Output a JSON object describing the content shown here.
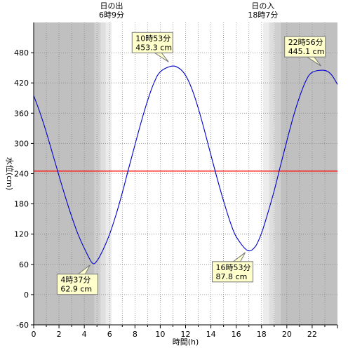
{
  "chart_data": {
    "type": "line",
    "title": "",
    "xlabel": "時間(h)",
    "ylabel": "水位(cm)",
    "xlim": [
      0,
      24
    ],
    "ylim": [
      -60,
      540
    ],
    "x_ticks": [
      0,
      2,
      4,
      6,
      8,
      10,
      12,
      14,
      16,
      18,
      20,
      22
    ],
    "x_tick_labels": [
      "0",
      "2",
      "4",
      "6",
      "8",
      "10",
      "12",
      "14",
      "16",
      "18",
      "20",
      "22"
    ],
    "y_ticks": [
      -60,
      0,
      60,
      120,
      180,
      240,
      300,
      360,
      420,
      480
    ],
    "y_tick_labels": [
      "-60",
      "0",
      "60",
      "120",
      "180",
      "240",
      "300",
      "360",
      "420",
      "480"
    ],
    "grid": true,
    "reference_line": {
      "y": 245,
      "color": "#ff0000"
    },
    "series": [
      {
        "color": "#0000cc",
        "x": [
          0,
          0.5,
          1,
          1.5,
          2,
          2.5,
          3,
          3.5,
          4,
          4.62,
          5,
          5.5,
          6,
          6.5,
          7,
          7.5,
          8,
          8.5,
          9,
          9.5,
          10,
          10.88,
          11.5,
          12,
          12.5,
          13,
          13.5,
          14,
          14.5,
          15,
          15.5,
          16,
          16.88,
          17.5,
          18,
          18.5,
          19,
          19.5,
          20,
          20.5,
          21,
          21.5,
          22,
          22.93,
          23.5,
          24
        ],
        "y": [
          395,
          361,
          322,
          279,
          236,
          194,
          155,
          120,
          92,
          62.9,
          67,
          90,
          120,
          158,
          202,
          250,
          297,
          343,
          385,
          420,
          442,
          453.3,
          449,
          435,
          408,
          370,
          325,
          277,
          230,
          186,
          146,
          115,
          87.8,
          95,
          122,
          162,
          206,
          256,
          305,
          352,
          392,
          424,
          441,
          445.1,
          437,
          417
        ]
      }
    ],
    "sun_bands": [
      {
        "from": 0,
        "to": 4.8,
        "color": "#c0c0c0"
      },
      {
        "from": 4.8,
        "to": 5.3,
        "color": "#cfcfcf"
      },
      {
        "from": 5.3,
        "to": 5.7,
        "color": "#dedede"
      },
      {
        "from": 5.7,
        "to": 6.15,
        "color": "#ececec"
      },
      {
        "from": 18.12,
        "to": 18.6,
        "color": "#ececec"
      },
      {
        "from": 18.6,
        "to": 19.05,
        "color": "#dedede"
      },
      {
        "from": 19.05,
        "to": 19.5,
        "color": "#cfcfcf"
      },
      {
        "from": 19.5,
        "to": 24,
        "color": "#c0c0c0"
      }
    ],
    "sunrise": {
      "label": "日の出",
      "time": "6時9分",
      "x": 6.15
    },
    "sunset": {
      "label": "日の入",
      "time": "18時7分",
      "x": 18.12
    },
    "annotations": [
      {
        "name": "low-1",
        "time": "4時37分",
        "value": "62.9 cm",
        "x": 4.62,
        "y": 62.9,
        "placement": "below-left"
      },
      {
        "name": "high-1",
        "time": "10時53分",
        "value": "453.3 cm",
        "x": 10.88,
        "y": 453.3,
        "placement": "above-left"
      },
      {
        "name": "low-2",
        "time": "16時53分",
        "value": "87.8 cm",
        "x": 16.88,
        "y": 87.8,
        "placement": "below-left"
      },
      {
        "name": "high-2",
        "time": "22時56分",
        "value": "445.1 cm",
        "x": 22.93,
        "y": 445.1,
        "placement": "above-left"
      }
    ],
    "colors": {
      "callout_fill": "#ffffcc",
      "callout_stroke": "#777777",
      "axis": "#000000",
      "grid": "#888888"
    }
  }
}
